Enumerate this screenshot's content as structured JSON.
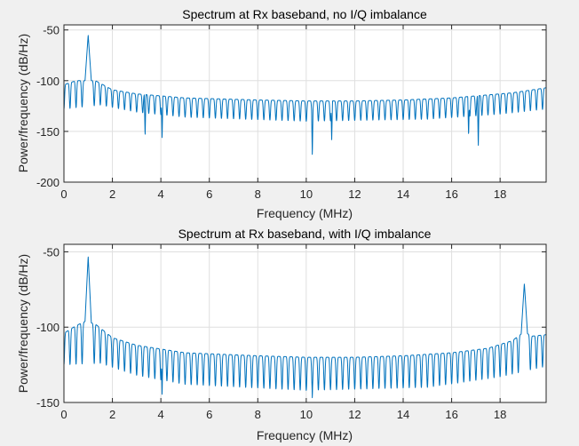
{
  "chart_data": [
    {
      "type": "line",
      "title": "Spectrum at Rx baseband, no I/Q imbalance",
      "xlabel": "Frequency (MHz)",
      "ylabel": "Power/frequency (dB/Hz)",
      "xlim": [
        0,
        19.9
      ],
      "ylim": [
        -200,
        -45
      ],
      "xticks": [
        0,
        2,
        4,
        6,
        8,
        10,
        12,
        14,
        16,
        18
      ],
      "yticks": [
        -200,
        -150,
        -100,
        -50
      ],
      "grid": true,
      "line_color": "#0072bd",
      "series": [
        {
          "name": "spectrum",
          "peaks": [
            {
              "x": 1.0,
              "y": -55
            }
          ],
          "envelope_points": [
            [
              0.0,
              -104
            ],
            [
              0.5,
              -100
            ],
            [
              0.9,
              -100
            ],
            [
              1.3,
              -100
            ],
            [
              2.0,
              -109
            ],
            [
              3.0,
              -113
            ],
            [
              5.0,
              -117
            ],
            [
              8.0,
              -119
            ],
            [
              10.0,
              -120
            ],
            [
              12.0,
              -120
            ],
            [
              14.0,
              -119
            ],
            [
              16.0,
              -117
            ],
            [
              17.5,
              -114
            ],
            [
              18.5,
              -112
            ],
            [
              19.9,
              -107
            ]
          ],
          "null_depth_points": [
            [
              0.0,
              -128
            ],
            [
              1.5,
              -124
            ],
            [
              3.0,
              -131
            ],
            [
              5.0,
              -136
            ],
            [
              10.0,
              -140
            ],
            [
              15.0,
              -138
            ],
            [
              18.0,
              -133
            ],
            [
              19.9,
              -128
            ]
          ],
          "deep_nulls": [
            {
              "x": 3.35,
              "y": -155
            },
            {
              "x": 4.05,
              "y": -158
            },
            {
              "x": 10.25,
              "y": -175
            },
            {
              "x": 11.05,
              "y": -159
            },
            {
              "x": 16.7,
              "y": -155
            },
            {
              "x": 17.1,
              "y": -166
            }
          ]
        }
      ]
    },
    {
      "type": "line",
      "title": "Spectrum at Rx baseband, with I/Q imbalance",
      "xlabel": "Frequency (MHz)",
      "ylabel": "Power/frequency (dB/Hz)",
      "xlim": [
        0,
        19.9
      ],
      "ylim": [
        -150,
        -45
      ],
      "xticks": [
        0,
        2,
        4,
        6,
        8,
        10,
        12,
        14,
        16,
        18
      ],
      "yticks": [
        -150,
        -100,
        -50
      ],
      "grid": true,
      "line_color": "#0072bd",
      "series": [
        {
          "name": "spectrum",
          "peaks": [
            {
              "x": 1.0,
              "y": -53
            },
            {
              "x": 19.0,
              "y": -71
            }
          ],
          "envelope_points": [
            [
              0.0,
              -104
            ],
            [
              0.5,
              -99
            ],
            [
              0.9,
              -96
            ],
            [
              1.3,
              -98
            ],
            [
              2.0,
              -107
            ],
            [
              3.0,
              -112
            ],
            [
              5.0,
              -117
            ],
            [
              8.0,
              -119
            ],
            [
              10.0,
              -120
            ],
            [
              12.0,
              -120
            ],
            [
              14.0,
              -119
            ],
            [
              16.0,
              -117
            ],
            [
              17.5,
              -114
            ],
            [
              18.5,
              -109
            ],
            [
              19.0,
              -103
            ],
            [
              19.3,
              -106
            ],
            [
              19.9,
              -105
            ]
          ],
          "null_depth_points": [
            [
              0.0,
              -125
            ],
            [
              1.5,
              -124
            ],
            [
              3.0,
              -132
            ],
            [
              5.0,
              -138
            ],
            [
              10.0,
              -142
            ],
            [
              15.0,
              -140
            ],
            [
              18.0,
              -133
            ],
            [
              19.9,
              -126
            ]
          ],
          "deep_nulls": [
            {
              "x": 4.05,
              "y": -146
            },
            {
              "x": 10.25,
              "y": -148
            }
          ]
        }
      ]
    }
  ]
}
